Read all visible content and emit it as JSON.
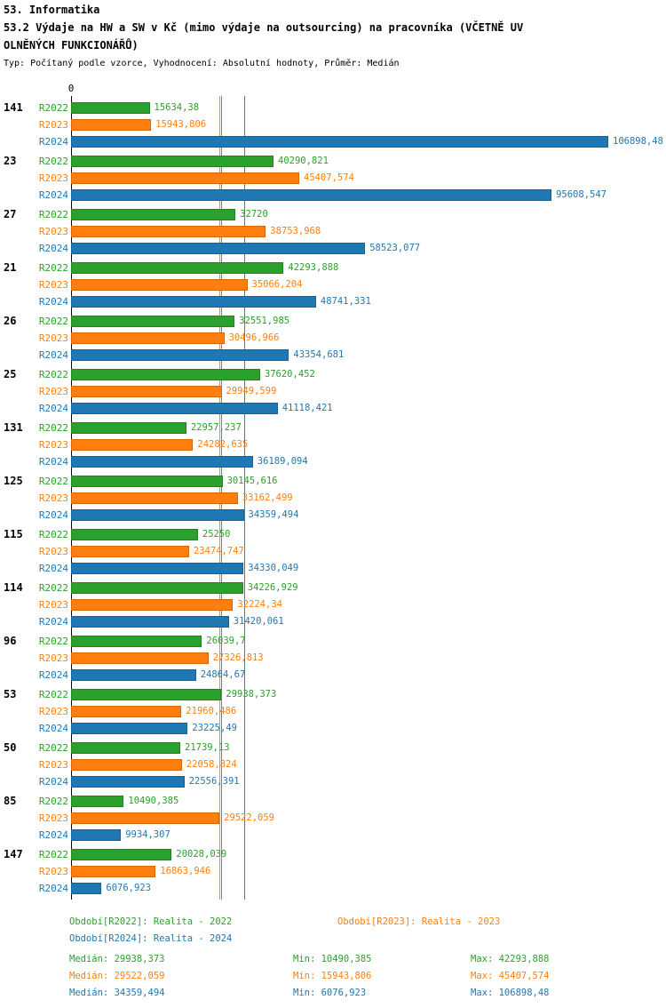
{
  "header": {
    "title": "53. Informatika",
    "subtitle_line1": "53.2 Výdaje na HW a SW v Kč (mimo výdaje na outsourcing) na pracovníka (VČETNĚ UV",
    "subtitle_line2": "OLNĚNÝCH FUNKCIONÁŘŮ)",
    "meta": "Typ: Počítaný podle vzorce, Vyhodnocení: Absolutní hodnoty, Průměr: Medián"
  },
  "chart_data": {
    "type": "bar",
    "orientation": "horizontal",
    "x_axis": {
      "zero_label": "0",
      "min": 0,
      "max": 106898.48
    },
    "grid": false,
    "legend_position": "bottom",
    "series": [
      {
        "name": "R2022",
        "color": "#2ca02c",
        "median": 29938.373
      },
      {
        "name": "R2023",
        "color": "#ff7f0e",
        "median": 29522.059
      },
      {
        "name": "R2024",
        "color": "#1f77b4",
        "median": 34359.494
      }
    ],
    "groups": [
      {
        "label": "141",
        "values": [
          15634.38,
          15943.806,
          106898.48
        ],
        "value_labels": [
          "15634,38",
          "15943,806",
          "106898,48"
        ]
      },
      {
        "label": "23",
        "values": [
          40290.821,
          45407.574,
          95608.547
        ],
        "value_labels": [
          "40290,821",
          "45407,574",
          "95608,547"
        ]
      },
      {
        "label": "27",
        "values": [
          32720,
          38753.968,
          58523.077
        ],
        "value_labels": [
          "32720",
          "38753,968",
          "58523,077"
        ]
      },
      {
        "label": "21",
        "values": [
          42293.888,
          35066.204,
          48741.331
        ],
        "value_labels": [
          "42293,888",
          "35066,204",
          "48741,331"
        ]
      },
      {
        "label": "26",
        "values": [
          32551.985,
          30496.966,
          43354.681
        ],
        "value_labels": [
          "32551,985",
          "30496,966",
          "43354,681"
        ]
      },
      {
        "label": "25",
        "values": [
          37620.452,
          29949.599,
          41118.421
        ],
        "value_labels": [
          "37620,452",
          "29949,599",
          "41118,421"
        ]
      },
      {
        "label": "131",
        "values": [
          22957.237,
          24282.635,
          36189.094
        ],
        "value_labels": [
          "22957,237",
          "24282,635",
          "36189,094"
        ]
      },
      {
        "label": "125",
        "values": [
          30145.616,
          33162.499,
          34359.494
        ],
        "value_labels": [
          "30145,616",
          "33162,499",
          "34359,494"
        ]
      },
      {
        "label": "115",
        "values": [
          25250,
          23474.747,
          34330.049
        ],
        "value_labels": [
          "25250",
          "23474,747",
          "34330,049"
        ]
      },
      {
        "label": "114",
        "values": [
          34226.929,
          32224.34,
          31420.061
        ],
        "value_labels": [
          "34226,929",
          "32224,34",
          "31420,061"
        ]
      },
      {
        "label": "96",
        "values": [
          26039.7,
          27326.813,
          24864.67
        ],
        "value_labels": [
          "26039,7",
          "27326,813",
          "24864,67"
        ]
      },
      {
        "label": "53",
        "values": [
          29938.373,
          21960.486,
          23225.49
        ],
        "value_labels": [
          "29938,373",
          "21960,486",
          "23225,49"
        ]
      },
      {
        "label": "50",
        "values": [
          21739.13,
          22058.824,
          22556.391
        ],
        "value_labels": [
          "21739,13",
          "22058,824",
          "22556,391"
        ]
      },
      {
        "label": "85",
        "values": [
          10490.385,
          29522.059,
          9934.307
        ],
        "value_labels": [
          "10490,385",
          "29522,059",
          "9934,307"
        ]
      },
      {
        "label": "147",
        "values": [
          20028.039,
          16863.946,
          6076.923
        ],
        "value_labels": [
          "20028,039",
          "16863,946",
          "6076,923"
        ]
      }
    ]
  },
  "legend": {
    "items": [
      {
        "label": "Období[R2022]: Realita - 2022"
      },
      {
        "label": "Období[R2023]: Realita - 2023"
      },
      {
        "label": "Období[R2024]: Realita - 2024"
      }
    ]
  },
  "stats": [
    {
      "median": "Medián: 29938,373",
      "min": "Min: 10490,385",
      "max": "Max: 42293,888"
    },
    {
      "median": "Medián: 29522,059",
      "min": "Min: 15943,806",
      "max": "Max: 45407,574"
    },
    {
      "median": "Medián: 34359,494",
      "min": "Min: 6076,923",
      "max": "Max: 106898,48"
    }
  ]
}
